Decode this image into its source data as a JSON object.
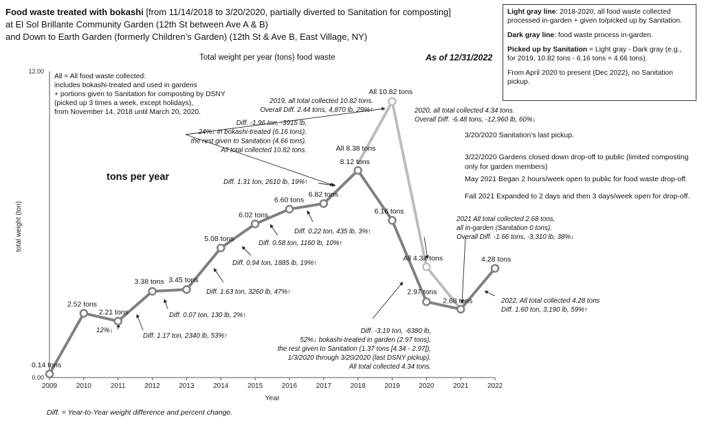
{
  "header": {
    "title_bold": "Food waste treated with bokashi",
    "title_rest": " [from 11/14/2018 to 3/20/2020, partially diverted to Sanitation for composting]",
    "line2": "at El Sol Brillante Community Garden (12th St between Ave A & B)",
    "line3": "and Down to Earth Garden (formerly Children’s Garden) (12th St & Ave B, East Village, NY)",
    "as_of": "As of 12/31/2022"
  },
  "legend": {
    "light_label": "Light gray line",
    "light_text": ": 2018-2020, all food waste collected processed in-garden + given to/picked up by Sanitation.",
    "dark_label": "Dark gray line",
    "dark_text": ": food waste process in-garden.",
    "pickup_label": "Picked up by Sanitation",
    "pickup_text": " = Light gray - Dark gray (e.g., for 2019, 10.82 tons - 6.16 tons = 4.66 tons).",
    "april_text": "From April 2020 to present (Dec 2022), no Sanitation pickup."
  },
  "notes": {
    "n1": "3/20/2020 Sanitation's last pickup.",
    "n2": "3/22/2020 Gardens closed down drop-off to public (limited composting only for garden members)",
    "n3": "May 2021 Began 2 hours/week open to public for food waste drop-off.",
    "n4": "Fall 2021 Expanded to 2 days and then 3 days/week open for drop-off."
  },
  "footnote": "Diff. = Year-to-Year weight difference and percent change.",
  "colors": {
    "dark_line": "#808080",
    "light_line": "#bdbdbd",
    "marker_fill": "#ffffff"
  },
  "chart_data": {
    "type": "line",
    "title": "Total weight per year (tons) food waste",
    "xlabel": "Year",
    "ylabel": "total weight (ton)",
    "inner_label": "tons per year",
    "ylim": [
      0,
      12
    ],
    "y_ticks": [
      "0.00",
      "12.00"
    ],
    "x": [
      "2009",
      "2010",
      "2011",
      "2012",
      "2013",
      "2014",
      "2015",
      "2016",
      "2017",
      "2018",
      "2019",
      "2020",
      "2021",
      "2022"
    ],
    "series": [
      {
        "values": [
          0.14,
          2.52,
          2.21,
          3.38,
          3.45,
          5.08,
          6.02,
          6.6,
          6.82,
          8.12,
          6.16,
          2.97,
          2.68,
          4.28
        ]
      },
      {
        "x": [
          "2018",
          "2019",
          "2020",
          "2021"
        ],
        "values": [
          8.38,
          10.82,
          4.34,
          2.68
        ]
      }
    ],
    "point_labels": [
      {
        "year": "2009",
        "y": 0.14,
        "text": "0.14 tons"
      },
      {
        "year": "2010",
        "y": 2.52,
        "text": "2.52 tons"
      },
      {
        "year": "2011",
        "y": 2.21,
        "text": "2.21 tons"
      },
      {
        "year": "2012",
        "y": 3.38,
        "text": "3.38 tons"
      },
      {
        "year": "2013",
        "y": 3.45,
        "text": "3.45 tons"
      },
      {
        "year": "2014",
        "y": 5.08,
        "text": "5.08 tons"
      },
      {
        "year": "2015",
        "y": 6.02,
        "text": "6.02 tons"
      },
      {
        "year": "2016",
        "y": 6.6,
        "text": "6.60 tons"
      },
      {
        "year": "2017",
        "y": 6.82,
        "text": "6.82 tons"
      },
      {
        "year": "2018",
        "y": 8.38,
        "text": "All 8.38 tons"
      },
      {
        "year": "2018",
        "y": 8.12,
        "text": "8.12 tons"
      },
      {
        "year": "2019",
        "y": 10.82,
        "text": "All 10.82 tons"
      },
      {
        "year": "2019",
        "y": 6.16,
        "text": "6.16 tons"
      },
      {
        "year": "2020",
        "y": 4.34,
        "text": "All 4.34 tons"
      },
      {
        "year": "2020",
        "y": 2.97,
        "text": "2.97 tons"
      },
      {
        "year": "2021",
        "y": 2.68,
        "text": "2.68 tons"
      },
      {
        "year": "2022",
        "y": 4.28,
        "text": "4.28 tons"
      }
    ],
    "all_note": [
      "All = All food waste collected:",
      "includes bokashi-treated and used in gardens",
      "+ portions given to Sanitation for composting by DSNY",
      "(picked up 3 times a week, except holidays),",
      "from November 14, 2018 until March 20, 2020."
    ],
    "annotations": [
      {
        "id": "d2011",
        "lines": [
          "12%↓"
        ]
      },
      {
        "id": "d2012",
        "lines": [
          "Diff. 1.17 ton, 2340 lb, 53%↑"
        ]
      },
      {
        "id": "d2013",
        "lines": [
          "Diff. 0.07 ton, 130 lb, 2%↑"
        ]
      },
      {
        "id": "d2014",
        "lines": [
          "Diff. 1.63 ton, 3260 lb, 47%↑"
        ]
      },
      {
        "id": "d2015",
        "lines": [
          "Diff. 0.94 ton, 1885 lb, 19%↑"
        ]
      },
      {
        "id": "d2016",
        "lines": [
          "Diff. 0.58 ton, 1160 lb, 10%↑"
        ]
      },
      {
        "id": "d2017",
        "lines": [
          "Diff. 0.22 ton, 435 lb, 3%↑"
        ]
      },
      {
        "id": "d2018",
        "lines": [
          "Diff. 1.31 ton, 2610 lb, 19%↑"
        ]
      },
      {
        "id": "d2019a",
        "lines": [
          "Diff. -1.96 ton, -3915 lb,",
          "24%↓ in bokashi-treated (6.16 tons),",
          "the rest given to Sanitation (4.66 tons).",
          "All total collected 10.82 tons."
        ]
      },
      {
        "id": "d2019b",
        "lines": [
          "2019, all total collected 10.82 tons.",
          "Overall Diff. 2.44 tons, 4,870 lb, 29%↑"
        ]
      },
      {
        "id": "d2020a",
        "lines": [
          "2020, all total collected 4.34 tons.",
          "Overall Diff. -6.48 tons, -12,960 lb, 60%↓"
        ]
      },
      {
        "id": "d2020b",
        "lines": [
          "Diff. -3.19 ton, -6380 lb,",
          "52%↓ bokashi-treated in garden (2.97 tons),",
          "the rest given to Sanitation (1.37 tons [4.34 - 2.97]),",
          "1/3/2020 through 3/20/2020 (last DSNY pickup).",
          "All total collected 4.34 tons."
        ]
      },
      {
        "id": "d2021",
        "lines": [
          "2021 All total collected 2.68 tons,",
          "all in-garden (Sanitation 0 tons).",
          "Overall Diff. -1.66 tons, -3,310 lb, 38%↓"
        ]
      },
      {
        "id": "d2022",
        "lines": [
          "2022, All total collected 4.28 tons",
          "Diff. 1.60 ton, 3,190 lb, 59%↑"
        ]
      }
    ]
  }
}
